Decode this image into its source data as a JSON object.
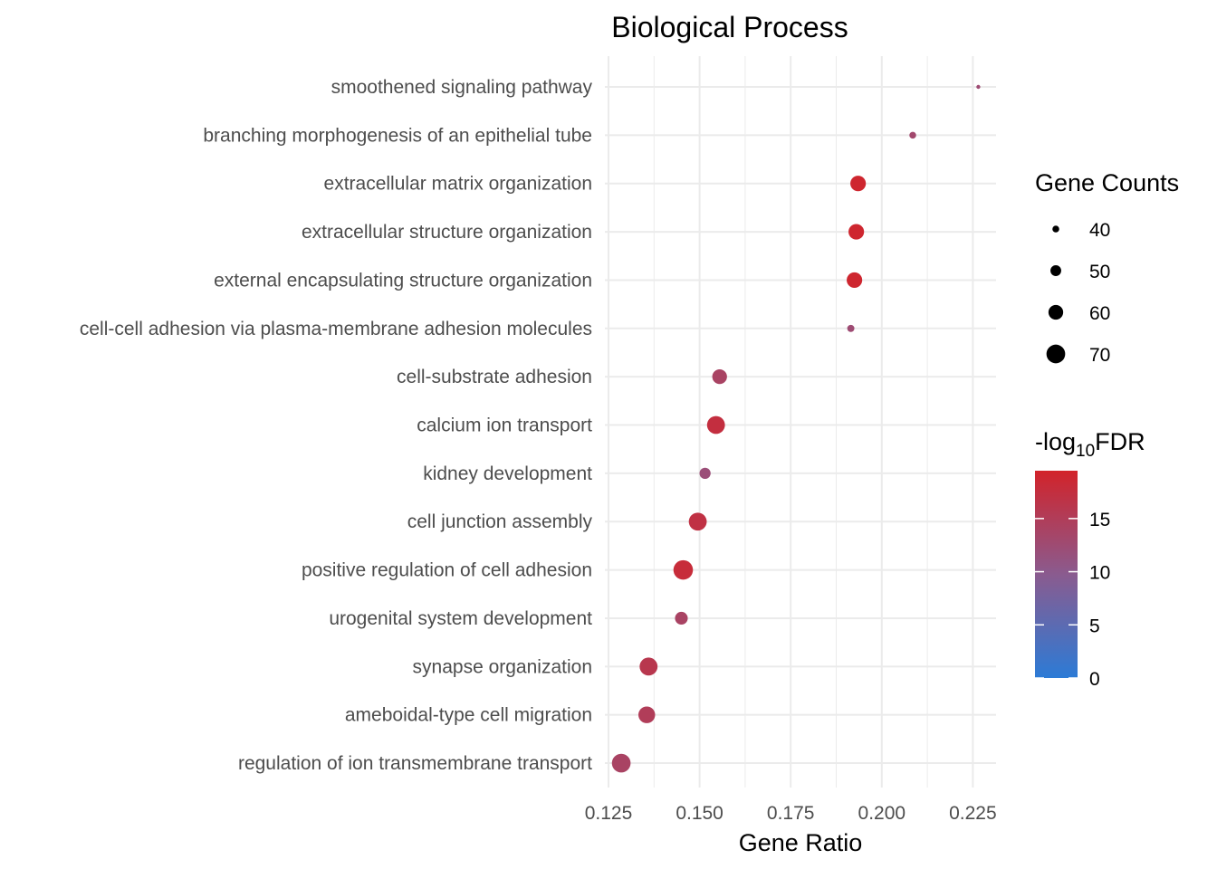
{
  "chart_data": {
    "type": "scatter",
    "title": "Biological Process",
    "xlabel": "Gene Ratio",
    "ylabel": "",
    "xlim": [
      0.1225,
      0.2305
    ],
    "xticks": [
      0.125,
      0.15,
      0.175,
      0.2,
      0.225
    ],
    "xtick_labels": [
      "0.125",
      "0.150",
      "0.175",
      "0.200",
      "0.225"
    ],
    "points": [
      {
        "term": "smoothened signaling pathway",
        "gene_ratio": 0.2265,
        "count": 33,
        "neg_log10_fdr": 12.5
      },
      {
        "term": "branching morphogenesis of an epithelial tube",
        "gene_ratio": 0.2085,
        "count": 40,
        "neg_log10_fdr": 13.0
      },
      {
        "term": "extracellular matrix organization",
        "gene_ratio": 0.1935,
        "count": 62,
        "neg_log10_fdr": 19.0
      },
      {
        "term": "extracellular structure organization",
        "gene_ratio": 0.193,
        "count": 62,
        "neg_log10_fdr": 19.0
      },
      {
        "term": "external encapsulating structure organization",
        "gene_ratio": 0.1925,
        "count": 62,
        "neg_log10_fdr": 19.0
      },
      {
        "term": "cell-cell adhesion via plasma-membrane adhesion molecules",
        "gene_ratio": 0.1915,
        "count": 41,
        "neg_log10_fdr": 12.5
      },
      {
        "term": "cell-substrate adhesion",
        "gene_ratio": 0.1555,
        "count": 60,
        "neg_log10_fdr": 14.0
      },
      {
        "term": "calcium ion transport",
        "gene_ratio": 0.1545,
        "count": 68,
        "neg_log10_fdr": 17.5
      },
      {
        "term": "kidney development",
        "gene_ratio": 0.1515,
        "count": 51,
        "neg_log10_fdr": 12.0
      },
      {
        "term": "cell junction assembly",
        "gene_ratio": 0.1495,
        "count": 68,
        "neg_log10_fdr": 17.0
      },
      {
        "term": "positive regulation of cell adhesion",
        "gene_ratio": 0.1455,
        "count": 72,
        "neg_log10_fdr": 18.0
      },
      {
        "term": "urogenital system development",
        "gene_ratio": 0.145,
        "count": 55,
        "neg_log10_fdr": 14.0
      },
      {
        "term": "synapse organization",
        "gene_ratio": 0.136,
        "count": 68,
        "neg_log10_fdr": 16.0
      },
      {
        "term": "ameboidal-type cell migration",
        "gene_ratio": 0.1355,
        "count": 65,
        "neg_log10_fdr": 15.0
      },
      {
        "term": "regulation of ion transmembrane transport",
        "gene_ratio": 0.1285,
        "count": 70,
        "neg_log10_fdr": 14.0
      }
    ],
    "size_legend": {
      "title": "Gene Counts",
      "values": [
        40,
        50,
        60,
        70
      ],
      "labels": [
        "40",
        "50",
        "60",
        "70"
      ]
    },
    "color_legend": {
      "title_prefix": "-log",
      "title_subscript": "10",
      "title_suffix": "FDR",
      "range": [
        0,
        19.5
      ],
      "ticks": [
        0,
        5,
        10,
        15
      ],
      "tick_labels": [
        "0",
        "5",
        "10",
        "15"
      ],
      "low_color": "#2c7bd6",
      "mid_color": "#8a5b8f",
      "high_color": "#d2232a"
    },
    "grid": true,
    "legend_position": "right"
  }
}
